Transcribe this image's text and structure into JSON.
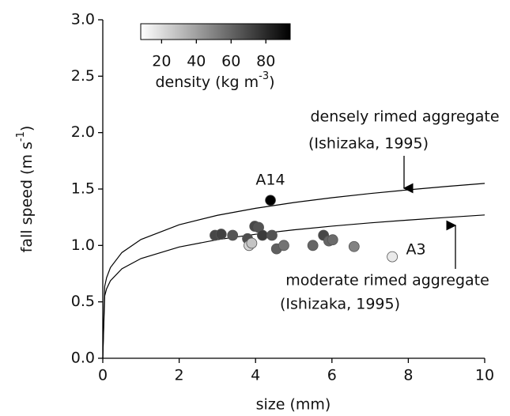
{
  "chart_data": {
    "type": "scatter",
    "xlabel": "size (mm)",
    "ylabel": "fall speed (m s",
    "ylabel_sup": "-1",
    "ylabel_end": ")",
    "xlim": [
      0,
      10
    ],
    "ylim": [
      0,
      3.0
    ],
    "xticks": [
      0,
      2,
      4,
      6,
      8,
      10
    ],
    "yticks": [
      {
        "value": 0,
        "label": "0.0"
      },
      {
        "value": 0.5,
        "label": "0.5"
      },
      {
        "value": 1.0,
        "label": "1.0"
      },
      {
        "value": 1.5,
        "label": "1.5"
      },
      {
        "value": 2.0,
        "label": "2.0"
      },
      {
        "value": 2.5,
        "label": "2.5"
      },
      {
        "value": 3.0,
        "label": "3.0"
      }
    ],
    "x": [
      2.94,
      3.1,
      3.4,
      3.79,
      3.83,
      3.9,
      3.98,
      4.08,
      4.18,
      4.43,
      4.55,
      4.74,
      5.5,
      5.78,
      5.92,
      6.02,
      6.58,
      7.58,
      4.39
    ],
    "values": [
      1.09,
      1.1,
      1.09,
      1.06,
      1.0,
      1.02,
      1.17,
      1.16,
      1.09,
      1.09,
      0.97,
      1.0,
      1.0,
      1.09,
      1.04,
      1.05,
      0.99,
      0.9,
      1.4
    ],
    "density": [
      70,
      72,
      65,
      68,
      22,
      28,
      70,
      66,
      74,
      66,
      62,
      55,
      60,
      70,
      60,
      58,
      50,
      15,
      94
    ],
    "colormap": [
      "#ffffff",
      "#000000"
    ],
    "clim": [
      8,
      94
    ],
    "colorbar_ticks": [
      20,
      40,
      60,
      80
    ],
    "colorbar_label": "density (kg m",
    "colorbar_label_sup": "-3",
    "colorbar_label_end": ")",
    "curves": [
      {
        "name": "densely rimed aggregate",
        "color": "#000000",
        "x": [
          0,
          0.05,
          0.1,
          0.2,
          0.5,
          1,
          2,
          3,
          4,
          5,
          6,
          7,
          8,
          9,
          10
        ],
        "values": [
          0,
          0.637,
          0.715,
          0.804,
          0.937,
          1.053,
          1.183,
          1.267,
          1.329,
          1.38,
          1.423,
          1.46,
          1.493,
          1.523,
          1.55
        ]
      },
      {
        "name": "moderate rimed aggregate",
        "color": "#000000",
        "x": [
          0,
          0.05,
          0.1,
          0.2,
          0.5,
          1,
          2,
          3,
          4,
          5,
          6,
          7,
          8,
          9,
          10
        ],
        "values": [
          0,
          0.553,
          0.616,
          0.687,
          0.793,
          0.884,
          0.986,
          1.051,
          1.099,
          1.138,
          1.171,
          1.2,
          1.225,
          1.248,
          1.27
        ]
      }
    ],
    "annotations": [
      "(Ishizaka, 1995)",
      "(Ishizaka, 1995)",
      "A14",
      "A3"
    ]
  }
}
